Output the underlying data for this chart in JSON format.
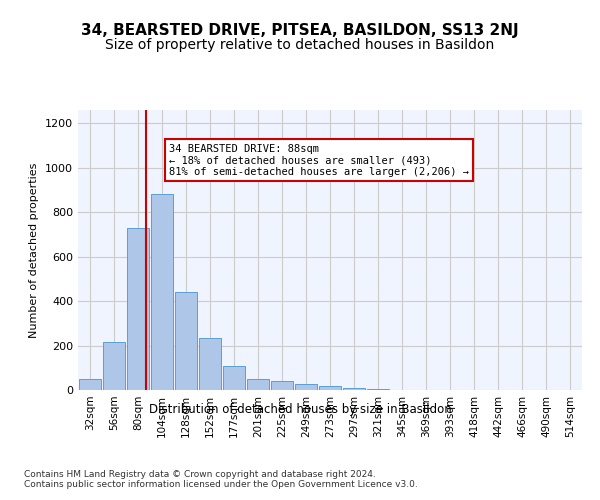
{
  "title": "34, BEARSTED DRIVE, PITSEA, BASILDON, SS13 2NJ",
  "subtitle": "Size of property relative to detached houses in Basildon",
  "xlabel": "Distribution of detached houses by size in Basildon",
  "ylabel": "Number of detached properties",
  "footer_line1": "Contains HM Land Registry data © Crown copyright and database right 2024.",
  "footer_line2": "Contains public sector information licensed under the Open Government Licence v3.0.",
  "bar_labels": [
    "32sqm",
    "56sqm",
    "80sqm",
    "104sqm",
    "128sqm",
    "152sqm",
    "177sqm",
    "201sqm",
    "225sqm",
    "249sqm",
    "273sqm",
    "297sqm",
    "321sqm",
    "345sqm",
    "369sqm",
    "393sqm",
    "418sqm",
    "442sqm",
    "466sqm",
    "490sqm",
    "514sqm"
  ],
  "bar_values": [
    50,
    215,
    730,
    880,
    440,
    235,
    110,
    50,
    40,
    25,
    20,
    10,
    5,
    2,
    1,
    1,
    0,
    0,
    0,
    0,
    0
  ],
  "bar_color": "#aec6e8",
  "bar_edge_color": "#5a9fd4",
  "vline_x": 2,
  "vline_color": "#cc0000",
  "annotation_text": "34 BEARSTED DRIVE: 88sqm\n← 18% of detached houses are smaller (493)\n81% of semi-detached houses are larger (2,206) →",
  "annotation_box_color": "#ffffff",
  "annotation_box_edge": "#cc0000",
  "ylim": [
    0,
    1260
  ],
  "yticks": [
    0,
    200,
    400,
    600,
    800,
    1000,
    1200
  ],
  "grid_color": "#cccccc",
  "bg_color": "#f0f4ff",
  "title_fontsize": 11,
  "subtitle_fontsize": 10
}
